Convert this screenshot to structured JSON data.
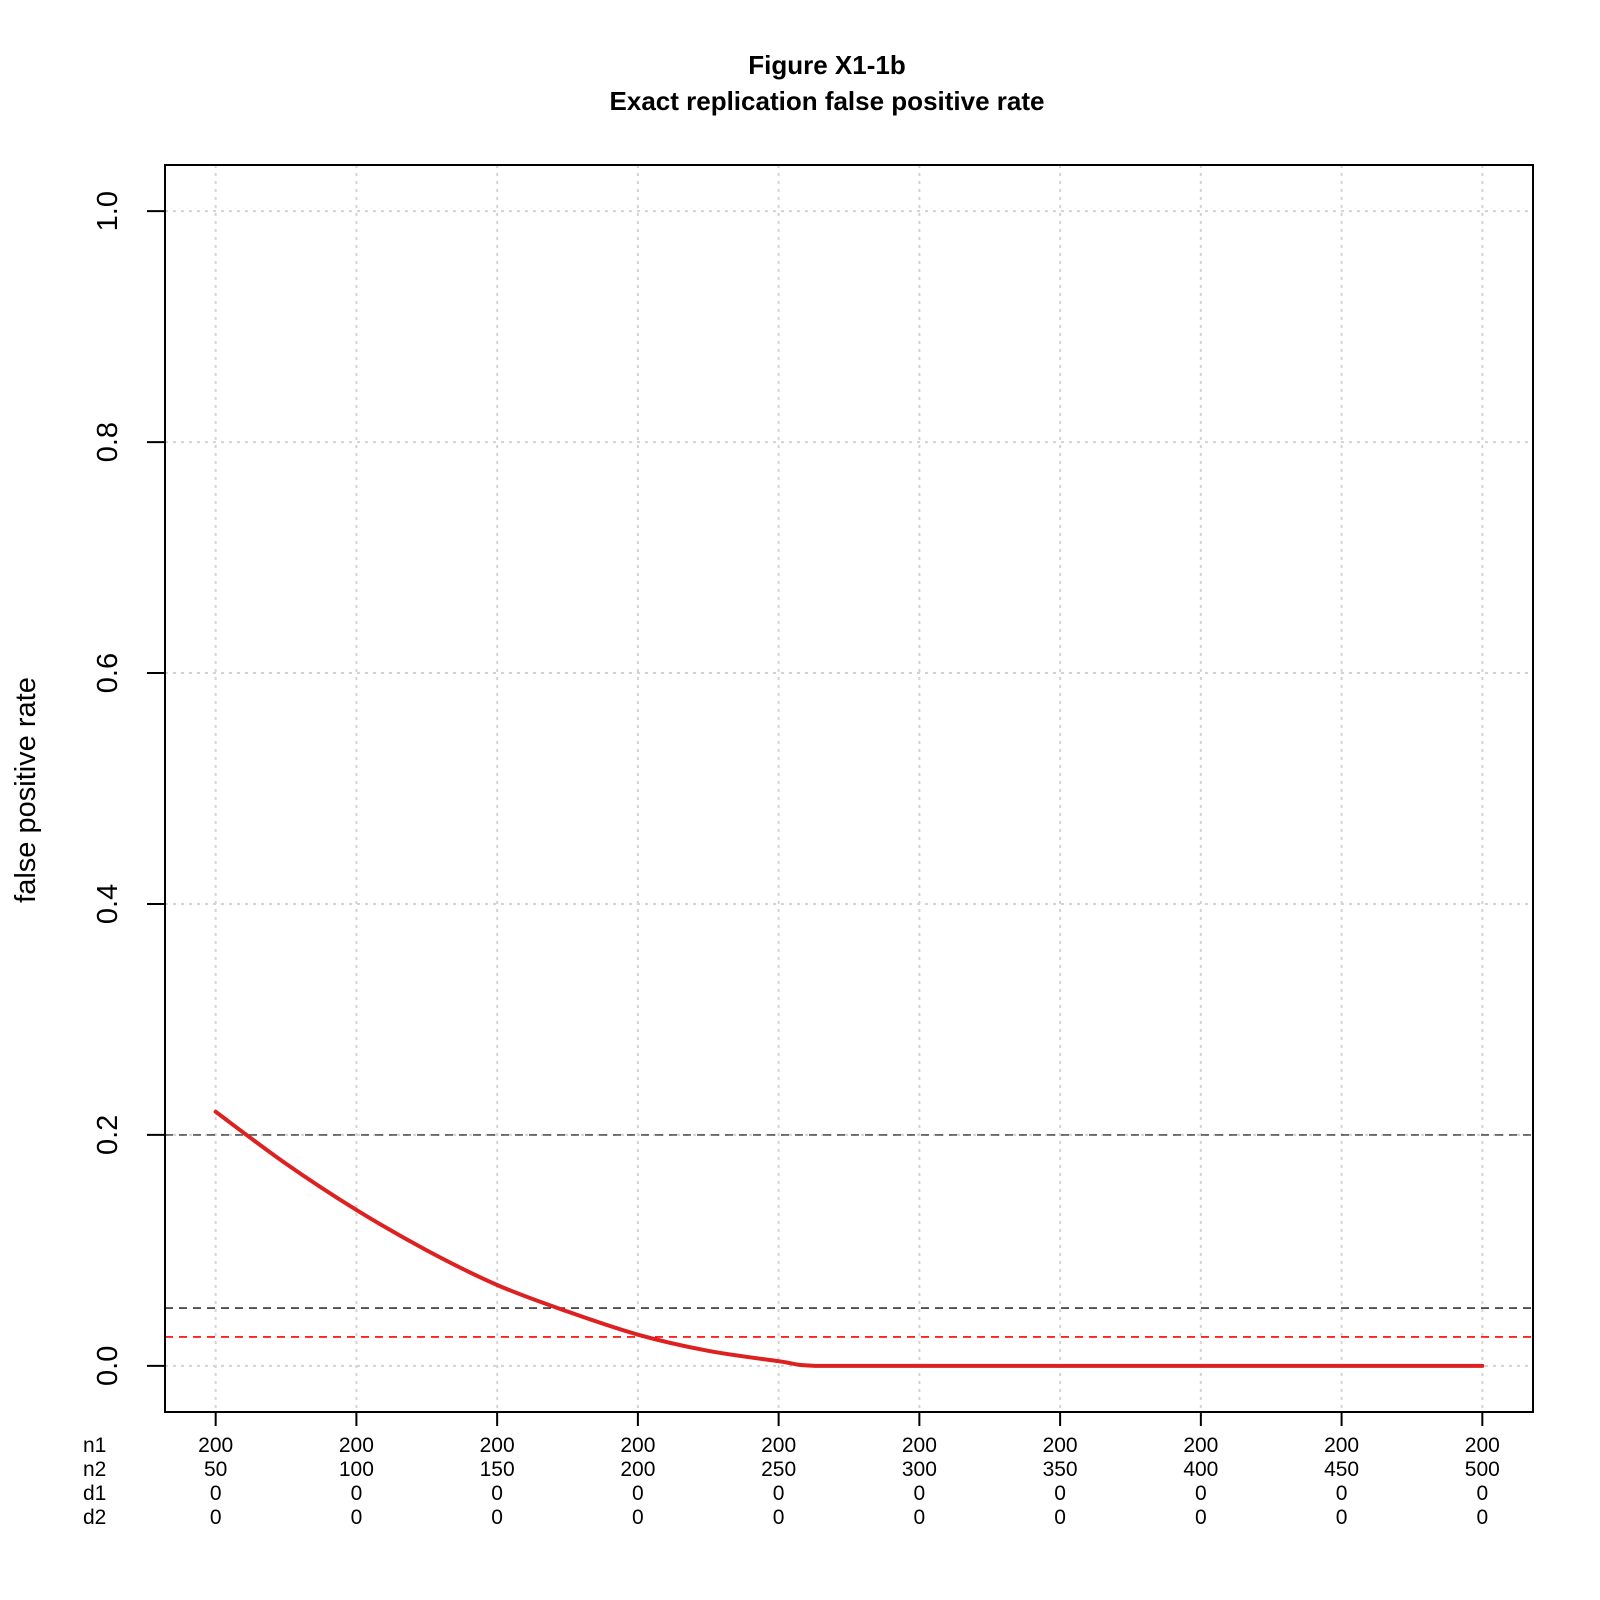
{
  "chart_data": {
    "type": "line",
    "title": "Figure X1-1b",
    "subtitle": "Exact replication false positive rate",
    "ylabel": "false positive rate",
    "xlabel": "",
    "ylim": [
      -0.04,
      1.04
    ],
    "yticks": [
      0.0,
      0.2,
      0.4,
      0.6,
      0.8,
      1.0
    ],
    "ytick_labels": [
      "0.0",
      "0.2",
      "0.4",
      "0.6",
      "0.8",
      "1.0"
    ],
    "grid": true,
    "x_rows": [
      {
        "label": "n1",
        "values": [
          "200",
          "200",
          "200",
          "200",
          "200",
          "200",
          "200",
          "200",
          "200",
          "200"
        ]
      },
      {
        "label": "n2",
        "values": [
          "50",
          "100",
          "150",
          "200",
          "250",
          "300",
          "350",
          "400",
          "450",
          "500"
        ]
      },
      {
        "label": "d1",
        "values": [
          "0",
          "0",
          "0",
          "0",
          "0",
          "0",
          "0",
          "0",
          "0",
          "0"
        ]
      },
      {
        "label": "d2",
        "values": [
          "0",
          "0",
          "0",
          "0",
          "0",
          "0",
          "0",
          "0",
          "0",
          "0"
        ]
      }
    ],
    "x": [
      50,
      100,
      150,
      200,
      250,
      300,
      350,
      400,
      450,
      500
    ],
    "xlim": [
      32,
      518
    ],
    "series": [
      {
        "color": "#dd2020",
        "x": [
          50,
          75,
          100,
          125,
          150,
          175,
          200,
          225,
          250,
          263,
          300,
          350,
          400,
          450,
          500
        ],
        "values": [
          0.22,
          0.175,
          0.135,
          0.1,
          0.07,
          0.047,
          0.027,
          0.013,
          0.004,
          0.0,
          0.0,
          0.0,
          0.0,
          0.0,
          0.0
        ]
      }
    ],
    "reference_lines": [
      {
        "y": 0.2,
        "color": "#555555",
        "style": "dashed"
      },
      {
        "y": 0.05,
        "color": "#333333",
        "style": "dashed"
      },
      {
        "y": 0.025,
        "color": "#ff0000",
        "style": "dashed"
      }
    ]
  }
}
